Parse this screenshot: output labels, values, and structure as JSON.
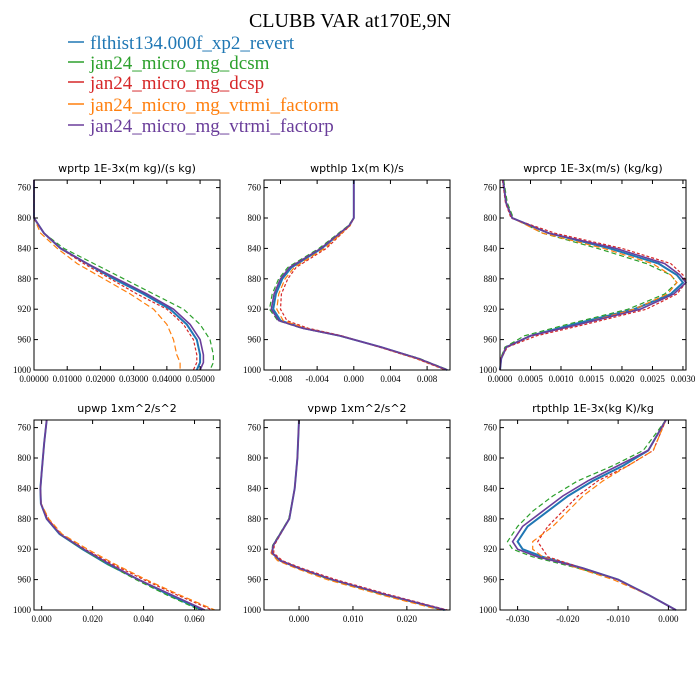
{
  "title": "CLUBB VAR at170E,9N",
  "legend": [
    {
      "name": "flthist134.000f_xp2_revert",
      "color": "#1f77b4"
    },
    {
      "name": "jan24_micro_mg_dcsm",
      "color": "#2ca02c"
    },
    {
      "name": "jan24_micro_mg_dcsp",
      "color": "#d62728"
    },
    {
      "name": "jan24_micro_mg_vtrmi_factorm",
      "color": "#ff7f0e"
    },
    {
      "name": "jan24_micro_mg_vtrmi_factorp",
      "color": "#6a3d9a"
    }
  ],
  "chart_data": [
    {
      "type": "line",
      "title": "wprtp  1E-3x(m kg)/(s kg)",
      "xlim": [
        0,
        0.056
      ],
      "ylim": [
        750,
        1000
      ],
      "xticks": [
        0,
        0.01,
        0.02,
        0.03,
        0.04,
        0.05
      ],
      "xticklabels": [
        "0.00000",
        "0.01000",
        "0.02000",
        "0.03000",
        "0.04000",
        "0.05000"
      ],
      "yticks": [
        760,
        800,
        840,
        880,
        920,
        960,
        1000
      ],
      "y": [
        750,
        800,
        820,
        840,
        860,
        880,
        900,
        920,
        940,
        960,
        980,
        990,
        1000
      ],
      "series": [
        {
          "values": [
            0,
            0,
            0.003,
            0.008,
            0.016,
            0.024,
            0.033,
            0.041,
            0.046,
            0.049,
            0.05,
            0.05,
            0.049
          ]
        },
        {
          "values": [
            0,
            0,
            0.003,
            0.009,
            0.018,
            0.027,
            0.036,
            0.045,
            0.05,
            0.053,
            0.054,
            0.054,
            0.053
          ]
        },
        {
          "values": [
            0,
            0,
            0.003,
            0.008,
            0.015,
            0.023,
            0.031,
            0.04,
            0.045,
            0.048,
            0.049,
            0.049,
            0.048
          ]
        },
        {
          "values": [
            0,
            0,
            0.002,
            0.007,
            0.013,
            0.021,
            0.029,
            0.036,
            0.04,
            0.042,
            0.043,
            0.044,
            0.044
          ]
        },
        {
          "values": [
            0,
            0,
            0.003,
            0.008,
            0.016,
            0.025,
            0.034,
            0.042,
            0.047,
            0.05,
            0.051,
            0.051,
            0.05
          ]
        }
      ]
    },
    {
      "type": "line",
      "title": "wpthlp  1x(m K)/s",
      "xlim": [
        -0.0098,
        0.0105
      ],
      "ylim": [
        750,
        1000
      ],
      "xticks": [
        -0.008,
        -0.004,
        0,
        0.004,
        0.008
      ],
      "xticklabels": [
        "-0.008",
        "-0.004",
        "0.000",
        "0.004",
        "0.008"
      ],
      "yticks": [
        760,
        800,
        840,
        880,
        920,
        960,
        1000
      ],
      "y": [
        750,
        800,
        810,
        840,
        865,
        880,
        900,
        920,
        935,
        945,
        955,
        970,
        985,
        1000
      ],
      "series": [
        {
          "values": [
            0,
            0,
            -0.0005,
            -0.0035,
            -0.0068,
            -0.0078,
            -0.0085,
            -0.0088,
            -0.008,
            -0.0055,
            -0.0015,
            0.003,
            0.007,
            0.0102
          ]
        },
        {
          "values": [
            0,
            0,
            -0.0006,
            -0.0038,
            -0.0072,
            -0.0082,
            -0.0089,
            -0.0092,
            -0.0083,
            -0.0057,
            -0.0016,
            0.003,
            0.0072,
            0.0103
          ]
        },
        {
          "values": [
            0,
            0,
            -0.0004,
            -0.003,
            -0.0063,
            -0.0072,
            -0.0079,
            -0.008,
            -0.0073,
            -0.005,
            -0.0013,
            0.0028,
            0.0068,
            0.01
          ]
        },
        {
          "values": [
            0,
            0,
            -0.0004,
            -0.0032,
            -0.0065,
            -0.0075,
            -0.0082,
            -0.0084,
            -0.0077,
            -0.0053,
            -0.0014,
            0.0029,
            0.0069,
            0.0101
          ]
        },
        {
          "values": [
            0,
            0,
            -0.0005,
            -0.0036,
            -0.007,
            -0.008,
            -0.0087,
            -0.009,
            -0.0082,
            -0.0056,
            -0.0015,
            0.003,
            0.0071,
            0.0102
          ]
        }
      ]
    },
    {
      "type": "line",
      "title": "wprcp  1E-3x(m/s) (kg/kg)",
      "xlim": [
        0,
        0.00305
      ],
      "ylim": [
        750,
        1000
      ],
      "xticks": [
        0,
        0.0005,
        0.001,
        0.0015,
        0.002,
        0.0025,
        0.003
      ],
      "xticklabels": [
        "0.0000",
        "0.0005",
        "0.0010",
        "0.0015",
        "0.0020",
        "0.0025",
        "0.0030"
      ],
      "yticks": [
        760,
        800,
        840,
        880,
        920,
        960,
        1000
      ],
      "y": [
        750,
        780,
        800,
        820,
        840,
        860,
        875,
        885,
        900,
        920,
        940,
        955,
        970,
        985,
        1000
      ],
      "series": [
        {
          "values": [
            5e-05,
            0.0001,
            0.0002,
            0.0008,
            0.0018,
            0.0026,
            0.0029,
            0.003,
            0.0028,
            0.0022,
            0.0012,
            0.0005,
            0.0001,
            2e-05,
            0
          ]
        },
        {
          "values": [
            6e-05,
            0.00012,
            0.00022,
            0.0007,
            0.0016,
            0.0024,
            0.0028,
            0.0029,
            0.0027,
            0.0021,
            0.0011,
            0.0004,
            8e-05,
            1e-05,
            0
          ]
        },
        {
          "values": [
            4e-05,
            9e-05,
            0.00018,
            0.0009,
            0.002,
            0.0028,
            0.003,
            0.00305,
            0.0029,
            0.0024,
            0.0014,
            0.0006,
            0.00012,
            2e-05,
            0
          ]
        },
        {
          "values": [
            5e-05,
            0.0001,
            0.0002,
            0.0007,
            0.0017,
            0.0025,
            0.0028,
            0.0029,
            0.00275,
            0.0022,
            0.0013,
            0.0005,
            0.0001,
            1e-05,
            0
          ]
        },
        {
          "values": [
            5e-05,
            0.0001,
            0.0002,
            0.0008,
            0.0019,
            0.0027,
            0.00295,
            0.00305,
            0.00285,
            0.0023,
            0.0013,
            0.0005,
            0.0001,
            2e-05,
            0
          ]
        }
      ]
    },
    {
      "type": "line",
      "title": "upwp  1xm^2/s^2",
      "xlim": [
        -0.003,
        0.07
      ],
      "ylim": [
        750,
        1000
      ],
      "xticks": [
        0,
        0.02,
        0.04,
        0.06
      ],
      "xticklabels": [
        "0.000",
        "0.020",
        "0.040",
        "0.060"
      ],
      "yticks": [
        760,
        800,
        840,
        880,
        920,
        960,
        1000
      ],
      "y": [
        750,
        780,
        800,
        820,
        840,
        860,
        880,
        900,
        920,
        940,
        960,
        980,
        1000
      ],
      "series": [
        {
          "values": [
            0.002,
            0.001,
            0.0005,
            0.0,
            -0.0005,
            -0.0003,
            0.002,
            0.007,
            0.016,
            0.026,
            0.038,
            0.05,
            0.063
          ]
        },
        {
          "values": [
            0.002,
            0.001,
            0.0005,
            0.0,
            -0.0005,
            -0.0003,
            0.002,
            0.007,
            0.016,
            0.026,
            0.037,
            0.049,
            0.062
          ]
        },
        {
          "values": [
            0.002,
            0.001,
            0.0005,
            0.0,
            -0.0005,
            -0.0002,
            0.0025,
            0.0075,
            0.017,
            0.028,
            0.04,
            0.053,
            0.067
          ]
        },
        {
          "values": [
            0.002,
            0.001,
            0.0005,
            0.0,
            -0.0005,
            -0.0002,
            0.0028,
            0.008,
            0.018,
            0.029,
            0.041,
            0.054,
            0.068
          ]
        },
        {
          "values": [
            0.002,
            0.001,
            0.0005,
            0.0,
            -0.0005,
            -0.0003,
            0.002,
            0.0072,
            0.0165,
            0.027,
            0.038,
            0.051,
            0.064
          ]
        }
      ]
    },
    {
      "type": "line",
      "title": "vpwp  1xm^2/s^2",
      "xlim": [
        -0.0065,
        0.028
      ],
      "ylim": [
        750,
        1000
      ],
      "xticks": [
        0,
        0.01,
        0.02
      ],
      "xticklabels": [
        "0.000",
        "0.010",
        "0.020"
      ],
      "yticks": [
        760,
        800,
        840,
        880,
        920,
        960,
        1000
      ],
      "y": [
        750,
        800,
        840,
        880,
        900,
        915,
        925,
        935,
        945,
        960,
        980,
        1000
      ],
      "series": [
        {
          "values": [
            0,
            -0.0003,
            -0.0008,
            -0.0018,
            -0.0035,
            -0.0048,
            -0.005,
            -0.0035,
            0.0,
            0.006,
            0.016,
            0.027
          ]
        },
        {
          "values": [
            0,
            -0.0003,
            -0.0008,
            -0.0019,
            -0.0036,
            -0.0049,
            -0.0051,
            -0.0036,
            -0.0002,
            0.0058,
            0.0158,
            0.0268
          ]
        },
        {
          "values": [
            0,
            -0.0003,
            -0.0008,
            -0.0018,
            -0.0034,
            -0.0046,
            -0.0047,
            -0.0031,
            0.0005,
            0.0068,
            0.0168,
            0.0275
          ]
        },
        {
          "values": [
            0,
            -0.0003,
            -0.0008,
            -0.0018,
            -0.0035,
            -0.0048,
            -0.0052,
            -0.004,
            -0.0006,
            0.0052,
            0.0152,
            0.0262
          ]
        },
        {
          "values": [
            0,
            -0.0003,
            -0.0008,
            -0.0018,
            -0.0035,
            -0.0048,
            -0.005,
            -0.0035,
            0.0,
            0.0062,
            0.0162,
            0.0272
          ]
        }
      ]
    },
    {
      "type": "line",
      "title": "rtpthlp  1E-3x(kg K)/kg",
      "xlim": [
        -0.0335,
        0.0035
      ],
      "ylim": [
        750,
        1000
      ],
      "xticks": [
        -0.03,
        -0.02,
        -0.01,
        0
      ],
      "xticklabels": [
        "-0.030",
        "-0.020",
        "-0.010",
        "0.000"
      ],
      "yticks": [
        760,
        800,
        840,
        880,
        920,
        960,
        1000
      ],
      "y": [
        750,
        790,
        810,
        830,
        850,
        870,
        890,
        910,
        920,
        930,
        945,
        960,
        980,
        1000
      ],
      "series": [
        {
          "values": [
            -0.0005,
            -0.004,
            -0.009,
            -0.015,
            -0.02,
            -0.024,
            -0.028,
            -0.03,
            -0.029,
            -0.025,
            -0.017,
            -0.01,
            -0.004,
            0.0015
          ]
        },
        {
          "values": [
            -0.0005,
            -0.005,
            -0.011,
            -0.018,
            -0.023,
            -0.027,
            -0.03,
            -0.032,
            -0.031,
            -0.027,
            -0.018,
            -0.01,
            -0.004,
            0.0015
          ]
        },
        {
          "values": [
            -0.0005,
            -0.003,
            -0.008,
            -0.014,
            -0.018,
            -0.021,
            -0.024,
            -0.026,
            -0.025,
            -0.024,
            -0.017,
            -0.01,
            -0.004,
            0.0015
          ]
        },
        {
          "values": [
            -0.0005,
            -0.003,
            -0.008,
            -0.013,
            -0.017,
            -0.02,
            -0.023,
            -0.027,
            -0.027,
            -0.025,
            -0.018,
            -0.011,
            -0.004,
            0.0015
          ]
        },
        {
          "values": [
            -0.0005,
            -0.004,
            -0.01,
            -0.016,
            -0.021,
            -0.025,
            -0.029,
            -0.031,
            -0.03,
            -0.026,
            -0.017,
            -0.01,
            -0.004,
            0.0015
          ]
        }
      ]
    }
  ]
}
